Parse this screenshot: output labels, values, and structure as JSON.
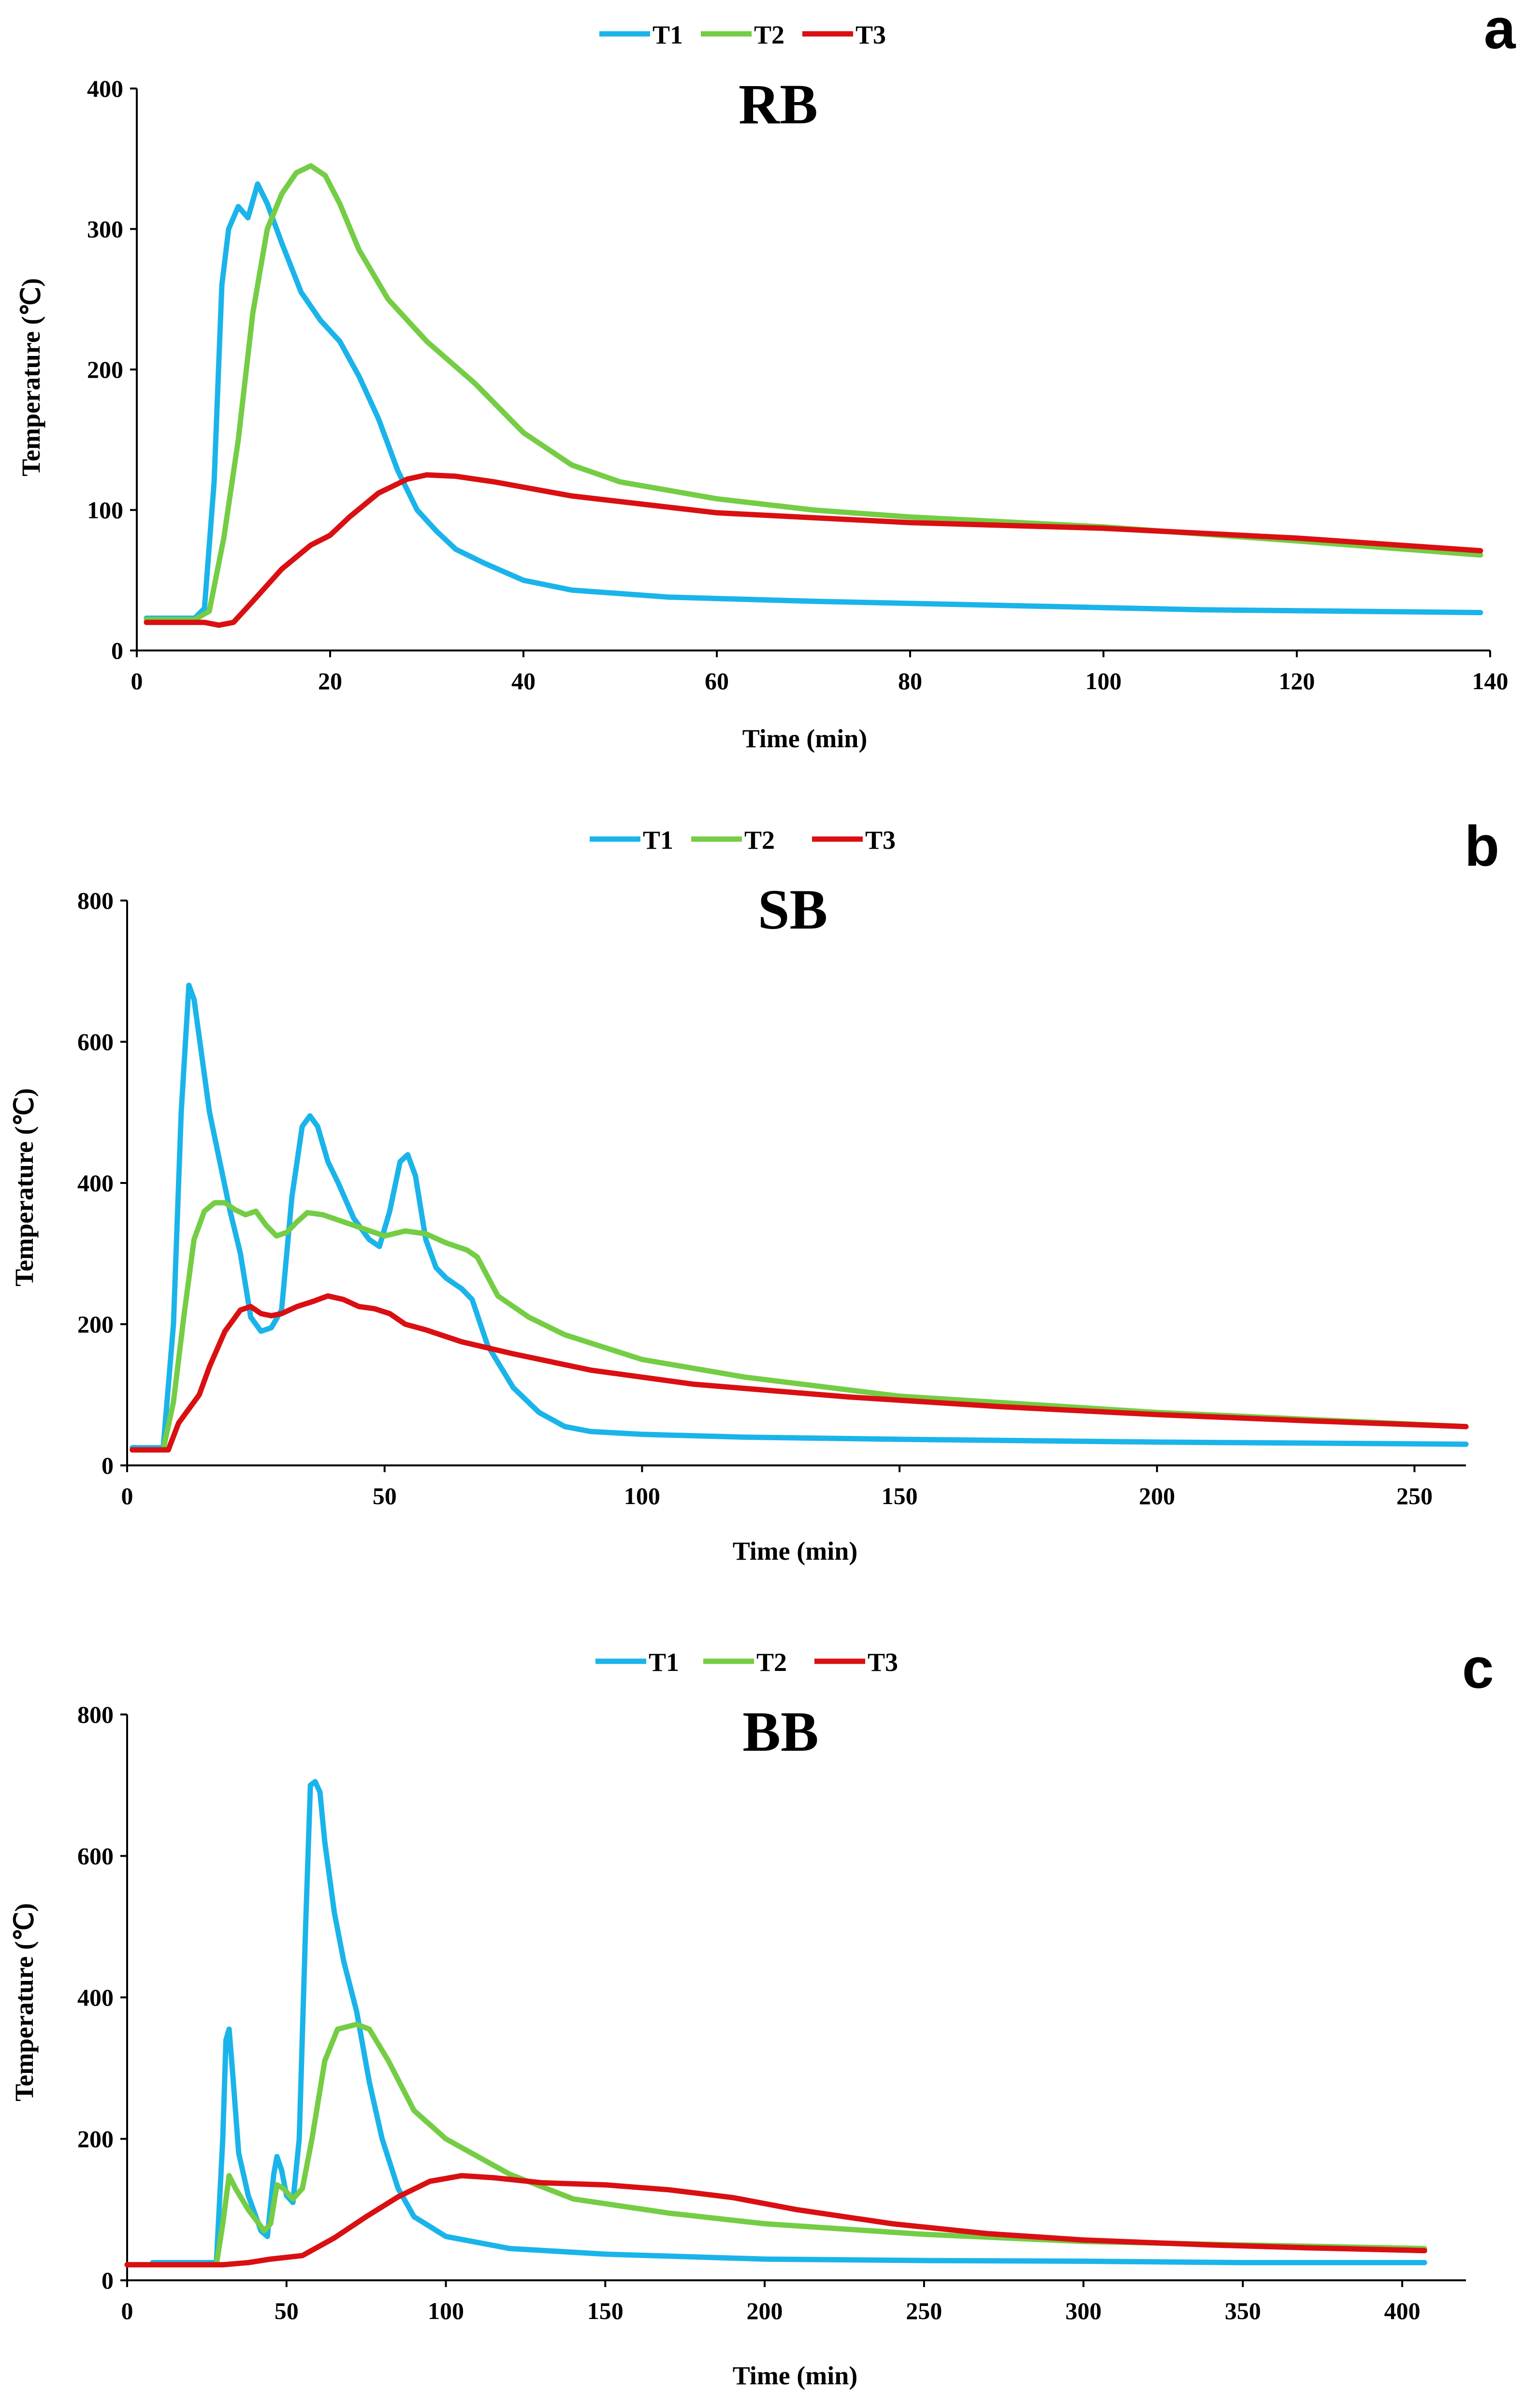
{
  "colors": {
    "T1": "#1ab4ea",
    "T2": "#74cd44",
    "T3": "#d90f12",
    "axis": "#000000"
  },
  "chart_data": [
    {
      "type": "line",
      "panel_letter": "a",
      "title": "RB",
      "xlabel": "Time (min)",
      "ylabel": "Temperature (℃)",
      "xlim": [
        0,
        140
      ],
      "ylim": [
        0,
        400
      ],
      "xticks": [
        0,
        20,
        40,
        60,
        80,
        100,
        120,
        140
      ],
      "yticks": [
        0,
        100,
        200,
        300,
        400
      ],
      "legend_position": "top-center",
      "series": [
        {
          "name": "T1",
          "color": "#1ab4ea",
          "points": [
            [
              1,
              23
            ],
            [
              6,
              23
            ],
            [
              7,
              30
            ],
            [
              8,
              120
            ],
            [
              8.8,
              260
            ],
            [
              9.5,
              300
            ],
            [
              10.5,
              316
            ],
            [
              11.5,
              308
            ],
            [
              12.5,
              332
            ],
            [
              13.5,
              318
            ],
            [
              15,
              290
            ],
            [
              17,
              255
            ],
            [
              19,
              235
            ],
            [
              21,
              220
            ],
            [
              23,
              195
            ],
            [
              25,
              165
            ],
            [
              27,
              128
            ],
            [
              29,
              100
            ],
            [
              31,
              85
            ],
            [
              33,
              72
            ],
            [
              36,
              62
            ],
            [
              40,
              50
            ],
            [
              45,
              43
            ],
            [
              55,
              38
            ],
            [
              70,
              35
            ],
            [
              90,
              32
            ],
            [
              110,
              29
            ],
            [
              125,
              28
            ],
            [
              139,
              27
            ]
          ]
        },
        {
          "name": "T2",
          "color": "#74cd44",
          "points": [
            [
              1,
              22
            ],
            [
              6,
              22
            ],
            [
              7.5,
              28
            ],
            [
              9,
              80
            ],
            [
              10.5,
              150
            ],
            [
              12,
              240
            ],
            [
              13.5,
              300
            ],
            [
              15,
              325
            ],
            [
              16.5,
              340
            ],
            [
              18,
              345
            ],
            [
              19.5,
              338
            ],
            [
              21,
              318
            ],
            [
              23,
              285
            ],
            [
              26,
              250
            ],
            [
              30,
              220
            ],
            [
              35,
              190
            ],
            [
              40,
              155
            ],
            [
              45,
              132
            ],
            [
              50,
              120
            ],
            [
              60,
              108
            ],
            [
              70,
              100
            ],
            [
              80,
              95
            ],
            [
              100,
              88
            ],
            [
              120,
              78
            ],
            [
              139,
              68
            ]
          ]
        },
        {
          "name": "T3",
          "color": "#d90f12",
          "points": [
            [
              1,
              20
            ],
            [
              7,
              20
            ],
            [
              8.5,
              18
            ],
            [
              10,
              20
            ],
            [
              12,
              35
            ],
            [
              15,
              58
            ],
            [
              18,
              75
            ],
            [
              20,
              82
            ],
            [
              22,
              95
            ],
            [
              25,
              112
            ],
            [
              28,
              122
            ],
            [
              30,
              125
            ],
            [
              33,
              124
            ],
            [
              37,
              120
            ],
            [
              45,
              110
            ],
            [
              60,
              98
            ],
            [
              80,
              91
            ],
            [
              100,
              87
            ],
            [
              120,
              80
            ],
            [
              139,
              71
            ]
          ]
        }
      ]
    },
    {
      "type": "line",
      "panel_letter": "b",
      "title": "SB",
      "xlabel": "Time (min)",
      "ylabel": "Temperature (℃)",
      "xlim": [
        0,
        260
      ],
      "ylim": [
        0,
        800
      ],
      "xticks": [
        0,
        50,
        100,
        150,
        200,
        250
      ],
      "yticks": [
        0,
        200,
        400,
        600,
        800
      ],
      "legend_position": "top-center",
      "series": [
        {
          "name": "T1",
          "color": "#1ab4ea",
          "points": [
            [
              1,
              25
            ],
            [
              7,
              25
            ],
            [
              9,
              200
            ],
            [
              10.5,
              500
            ],
            [
              12,
              680
            ],
            [
              13,
              660
            ],
            [
              14.5,
              580
            ],
            [
              16,
              500
            ],
            [
              18,
              430
            ],
            [
              20,
              360
            ],
            [
              22,
              300
            ],
            [
              24,
              210
            ],
            [
              26,
              190
            ],
            [
              28,
              195
            ],
            [
              30,
              220
            ],
            [
              32,
              380
            ],
            [
              34,
              480
            ],
            [
              35.5,
              495
            ],
            [
              37,
              480
            ],
            [
              39,
              430
            ],
            [
              41,
              400
            ],
            [
              44,
              350
            ],
            [
              47,
              320
            ],
            [
              49,
              310
            ],
            [
              51,
              360
            ],
            [
              53,
              430
            ],
            [
              54.5,
              440
            ],
            [
              56,
              410
            ],
            [
              58,
              320
            ],
            [
              60,
              280
            ],
            [
              62,
              265
            ],
            [
              65,
              250
            ],
            [
              67,
              235
            ],
            [
              70,
              170
            ],
            [
              75,
              110
            ],
            [
              80,
              75
            ],
            [
              85,
              55
            ],
            [
              90,
              48
            ],
            [
              100,
              44
            ],
            [
              120,
              40
            ],
            [
              150,
              37
            ],
            [
              200,
              33
            ],
            [
              260,
              30
            ]
          ]
        },
        {
          "name": "T2",
          "color": "#74cd44",
          "points": [
            [
              1,
              22
            ],
            [
              7,
              22
            ],
            [
              9,
              90
            ],
            [
              11,
              210
            ],
            [
              13,
              320
            ],
            [
              15,
              360
            ],
            [
              17,
              372
            ],
            [
              19,
              372
            ],
            [
              21,
              362
            ],
            [
              23,
              355
            ],
            [
              25,
              360
            ],
            [
              27,
              340
            ],
            [
              29,
              325
            ],
            [
              31,
              330
            ],
            [
              33,
              345
            ],
            [
              35,
              358
            ],
            [
              38,
              355
            ],
            [
              42,
              345
            ],
            [
              46,
              335
            ],
            [
              50,
              325
            ],
            [
              54,
              332
            ],
            [
              58,
              328
            ],
            [
              62,
              315
            ],
            [
              66,
              305
            ],
            [
              68,
              295
            ],
            [
              72,
              240
            ],
            [
              78,
              210
            ],
            [
              85,
              185
            ],
            [
              100,
              150
            ],
            [
              120,
              125
            ],
            [
              150,
              98
            ],
            [
              200,
              75
            ],
            [
              260,
              55
            ]
          ]
        },
        {
          "name": "T3",
          "color": "#d90f12",
          "points": [
            [
              1,
              22
            ],
            [
              8,
              22
            ],
            [
              10,
              60
            ],
            [
              12,
              80
            ],
            [
              14,
              100
            ],
            [
              16,
              140
            ],
            [
              19,
              190
            ],
            [
              22,
              220
            ],
            [
              24,
              225
            ],
            [
              26,
              215
            ],
            [
              28,
              212
            ],
            [
              30,
              215
            ],
            [
              33,
              225
            ],
            [
              36,
              232
            ],
            [
              39,
              240
            ],
            [
              42,
              235
            ],
            [
              45,
              225
            ],
            [
              48,
              222
            ],
            [
              51,
              215
            ],
            [
              54,
              200
            ],
            [
              58,
              192
            ],
            [
              65,
              175
            ],
            [
              75,
              158
            ],
            [
              90,
              135
            ],
            [
              110,
              115
            ],
            [
              140,
              97
            ],
            [
              170,
              83
            ],
            [
              200,
              72
            ],
            [
              230,
              63
            ],
            [
              260,
              55
            ]
          ]
        }
      ]
    },
    {
      "type": "line",
      "panel_letter": "c",
      "title": "BB",
      "xlabel": "Time (min)",
      "ylabel": "Temperature (℃)",
      "xlim": [
        0,
        420
      ],
      "ylim": [
        0,
        800
      ],
      "xticks": [
        0,
        50,
        100,
        150,
        200,
        250,
        300,
        350,
        400
      ],
      "yticks": [
        0,
        200,
        400,
        600,
        800
      ],
      "legend_position": "top-center",
      "series": [
        {
          "name": "T1",
          "color": "#1ab4ea",
          "points": [
            [
              8,
              25
            ],
            [
              28,
              25
            ],
            [
              30,
              200
            ],
            [
              31,
              340
            ],
            [
              32,
              355
            ],
            [
              33,
              300
            ],
            [
              35,
              180
            ],
            [
              38,
              120
            ],
            [
              42,
              70
            ],
            [
              44,
              62
            ],
            [
              46,
              150
            ],
            [
              47,
              175
            ],
            [
              48.5,
              155
            ],
            [
              50,
              120
            ],
            [
              52,
              110
            ],
            [
              54,
              200
            ],
            [
              56,
              500
            ],
            [
              57.5,
              700
            ],
            [
              59,
              705
            ],
            [
              60.5,
              690
            ],
            [
              62,
              620
            ],
            [
              65,
              520
            ],
            [
              68,
              450
            ],
            [
              72,
              380
            ],
            [
              76,
              280
            ],
            [
              80,
              200
            ],
            [
              85,
              130
            ],
            [
              90,
              90
            ],
            [
              100,
              62
            ],
            [
              120,
              45
            ],
            [
              150,
              37
            ],
            [
              200,
              30
            ],
            [
              250,
              28
            ],
            [
              300,
              27
            ],
            [
              350,
              25
            ],
            [
              407,
              25
            ]
          ]
        },
        {
          "name": "T2",
          "color": "#74cd44",
          "points": [
            [
              0,
              22
            ],
            [
              28,
              22
            ],
            [
              30,
              80
            ],
            [
              32,
              148
            ],
            [
              34,
              130
            ],
            [
              38,
              100
            ],
            [
              43,
              70
            ],
            [
              45,
              80
            ],
            [
              47,
              135
            ],
            [
              49,
              130
            ],
            [
              52,
              115
            ],
            [
              55,
              130
            ],
            [
              58,
              200
            ],
            [
              62,
              310
            ],
            [
              66,
              355
            ],
            [
              72,
              362
            ],
            [
              76,
              355
            ],
            [
              82,
              310
            ],
            [
              90,
              240
            ],
            [
              100,
              200
            ],
            [
              120,
              150
            ],
            [
              140,
              115
            ],
            [
              170,
              95
            ],
            [
              200,
              80
            ],
            [
              250,
              65
            ],
            [
              300,
              55
            ],
            [
              350,
              50
            ],
            [
              407,
              45
            ]
          ]
        },
        {
          "name": "T3",
          "color": "#d90f12",
          "points": [
            [
              0,
              22
            ],
            [
              30,
              22
            ],
            [
              38,
              25
            ],
            [
              45,
              30
            ],
            [
              55,
              35
            ],
            [
              65,
              60
            ],
            [
              75,
              90
            ],
            [
              85,
              118
            ],
            [
              95,
              140
            ],
            [
              105,
              148
            ],
            [
              115,
              145
            ],
            [
              130,
              138
            ],
            [
              150,
              135
            ],
            [
              170,
              128
            ],
            [
              190,
              117
            ],
            [
              210,
              100
            ],
            [
              240,
              80
            ],
            [
              270,
              66
            ],
            [
              300,
              57
            ],
            [
              340,
              50
            ],
            [
              370,
              46
            ],
            [
              407,
              42
            ]
          ]
        }
      ]
    }
  ]
}
